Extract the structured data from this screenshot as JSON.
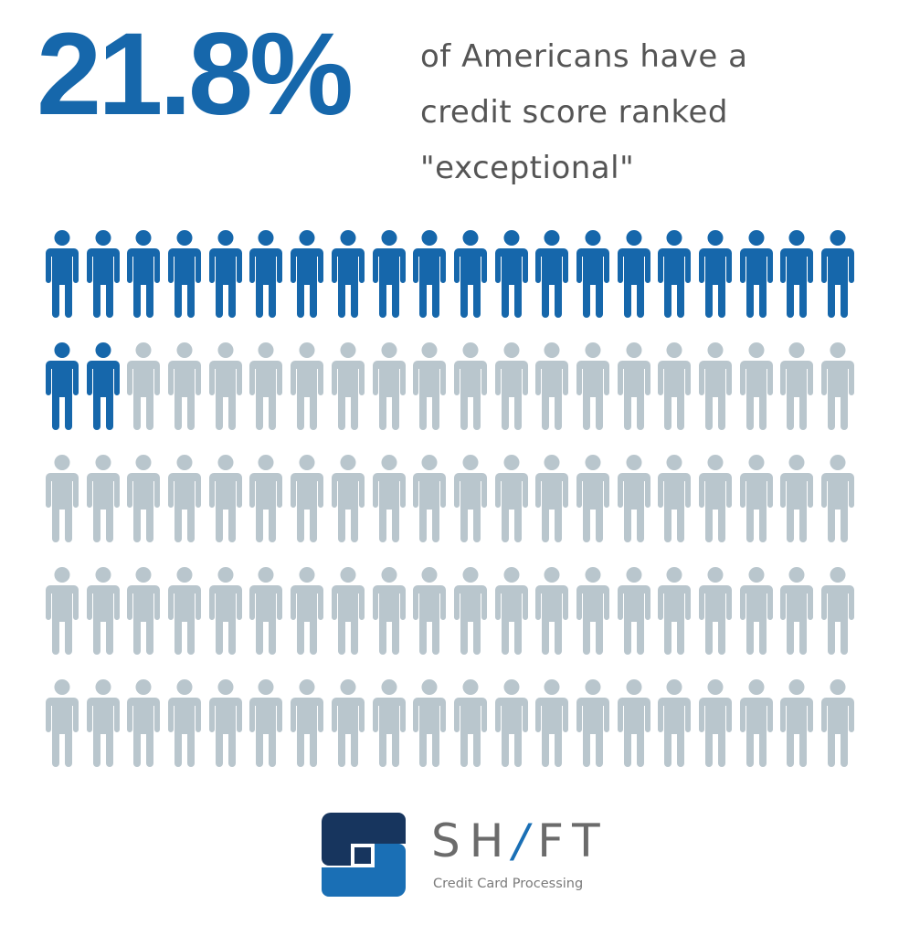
{
  "headline": {
    "stat": "21.8%",
    "caption_lines": [
      "of Americans have a",
      "credit score ranked",
      "\"exceptional\""
    ],
    "stat_color": "#1667ab",
    "caption_color": "#555555"
  },
  "pictogram": {
    "icon": "person-icon",
    "rows": 5,
    "columns": 20,
    "total": 100,
    "highlighted": 22,
    "highlight_color": "#1667ab",
    "base_color": "#b9c6cd"
  },
  "logo": {
    "brand_parts": [
      "SH",
      "/",
      "FT"
    ],
    "tagline": "Credit Card Processing",
    "dark_color": "#17355e",
    "light_color": "#1a6fb5"
  },
  "chart_data": {
    "type": "pictogram",
    "title": "21.8% of Americans have a credit score ranked \"exceptional\"",
    "categories": [
      "Exceptional credit score",
      "Other"
    ],
    "values": [
      21.8,
      78.2
    ],
    "icons_total": 100,
    "icons_highlighted": 22,
    "grid": {
      "rows": 5,
      "columns": 20
    },
    "colors": {
      "Exceptional credit score": "#1667ab",
      "Other": "#b9c6cd"
    }
  }
}
